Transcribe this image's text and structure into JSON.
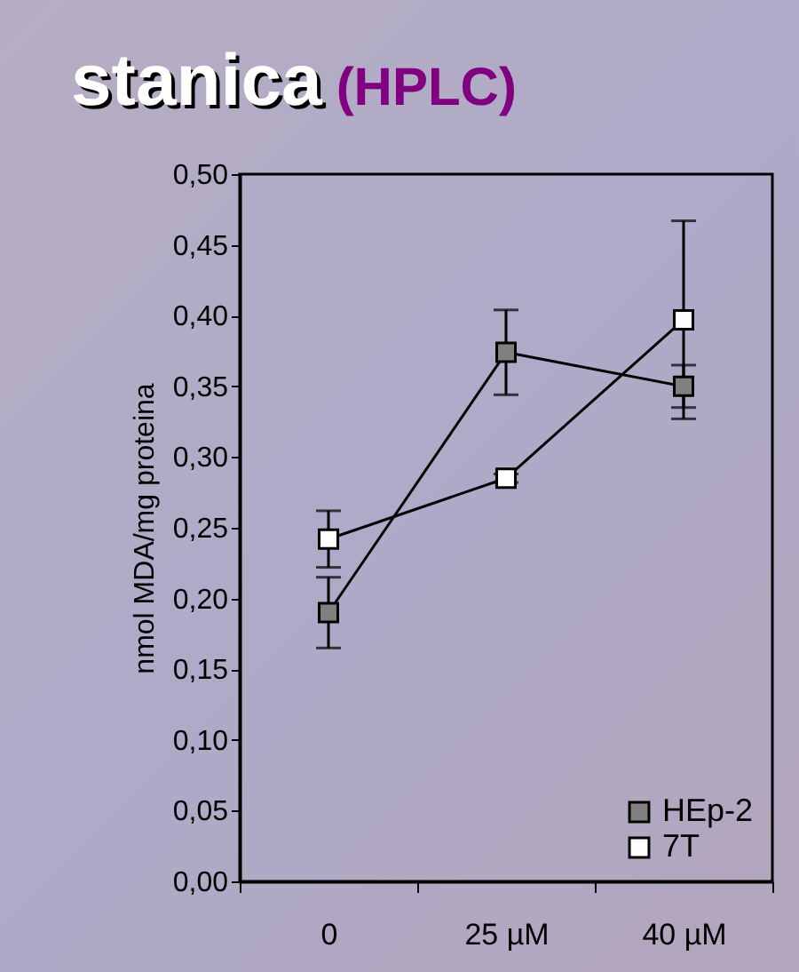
{
  "chart_data": {
    "type": "line",
    "title": "stanica",
    "subtitle": "(HPLC)",
    "ylabel": "nmol MDA/mg proteina",
    "categories": [
      "0",
      "25 µM",
      "40 µM"
    ],
    "series": [
      {
        "name": "HEp-2",
        "color": "#808080",
        "values": [
          0.19,
          0.374,
          0.35
        ],
        "errors": [
          0.025,
          0.03,
          0.015
        ]
      },
      {
        "name": "7T",
        "color": "#ffffff",
        "values": [
          0.242,
          0.285,
          0.397
        ],
        "errors": [
          0.02,
          0.003,
          0.07
        ]
      }
    ],
    "ylim": [
      0,
      0.5
    ],
    "yticks": [
      {
        "value": 0,
        "label": "0,00"
      },
      {
        "value": 0.05,
        "label": "0,05"
      },
      {
        "value": 0.1,
        "label": "0,10"
      },
      {
        "value": 0.15,
        "label": "0,15"
      },
      {
        "value": 0.2,
        "label": "0,20"
      },
      {
        "value": 0.25,
        "label": "0,25"
      },
      {
        "value": 0.3,
        "label": "0,30"
      },
      {
        "value": 0.35,
        "label": "0,35"
      },
      {
        "value": 0.4,
        "label": "0,40"
      },
      {
        "value": 0.45,
        "label": "0,45"
      },
      {
        "value": 0.5,
        "label": "0,50"
      }
    ],
    "grid": false,
    "legend": "bottom right",
    "marker": "square",
    "line_style": "solid"
  }
}
